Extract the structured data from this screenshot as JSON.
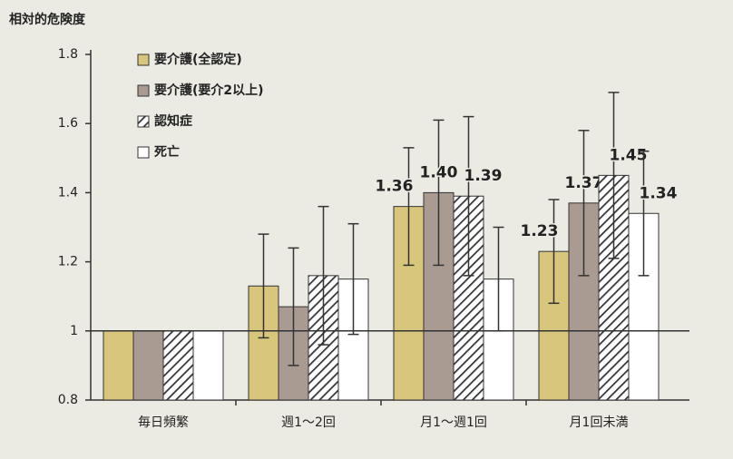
{
  "chart_data": {
    "type": "bar",
    "y_label": "相対的危険度",
    "categories": [
      "毎日頻繁",
      "週1～2回",
      "月1～週1回",
      "月1回未満"
    ],
    "series": [
      {
        "name": "要介護(全認定)",
        "color": "#d8c67c",
        "values": [
          1,
          1.13,
          1.36,
          1.23
        ],
        "errors": [
          null,
          0.15,
          0.17,
          0.15
        ],
        "value_labels": [
          null,
          null,
          "1.36",
          "1.23"
        ]
      },
      {
        "name": "要介護(要介2以上)",
        "color": "#a99a92",
        "values": [
          1,
          1.07,
          1.4,
          1.37
        ],
        "errors": [
          null,
          0.17,
          0.21,
          0.21
        ],
        "value_labels": [
          null,
          null,
          "1.40",
          "1.37"
        ]
      },
      {
        "name": "認知症",
        "color": "#333333",
        "pattern": "hatch",
        "values": [
          1,
          1.16,
          1.39,
          1.45
        ],
        "errors": [
          null,
          0.2,
          0.23,
          0.24
        ],
        "value_labels": [
          null,
          null,
          "1.39",
          "1.45"
        ]
      },
      {
        "name": "死亡",
        "color": "#ffffff",
        "values": [
          1,
          1.15,
          1.15,
          1.34
        ],
        "errors": [
          null,
          0.16,
          0.15,
          0.18
        ],
        "value_labels": [
          null,
          null,
          null,
          "1.34"
        ]
      }
    ],
    "ylim": [
      0.8,
      1.8
    ],
    "yticks": [
      0.8,
      1,
      1.2,
      1.4,
      1.6,
      1.8
    ],
    "reference_line": 1
  }
}
